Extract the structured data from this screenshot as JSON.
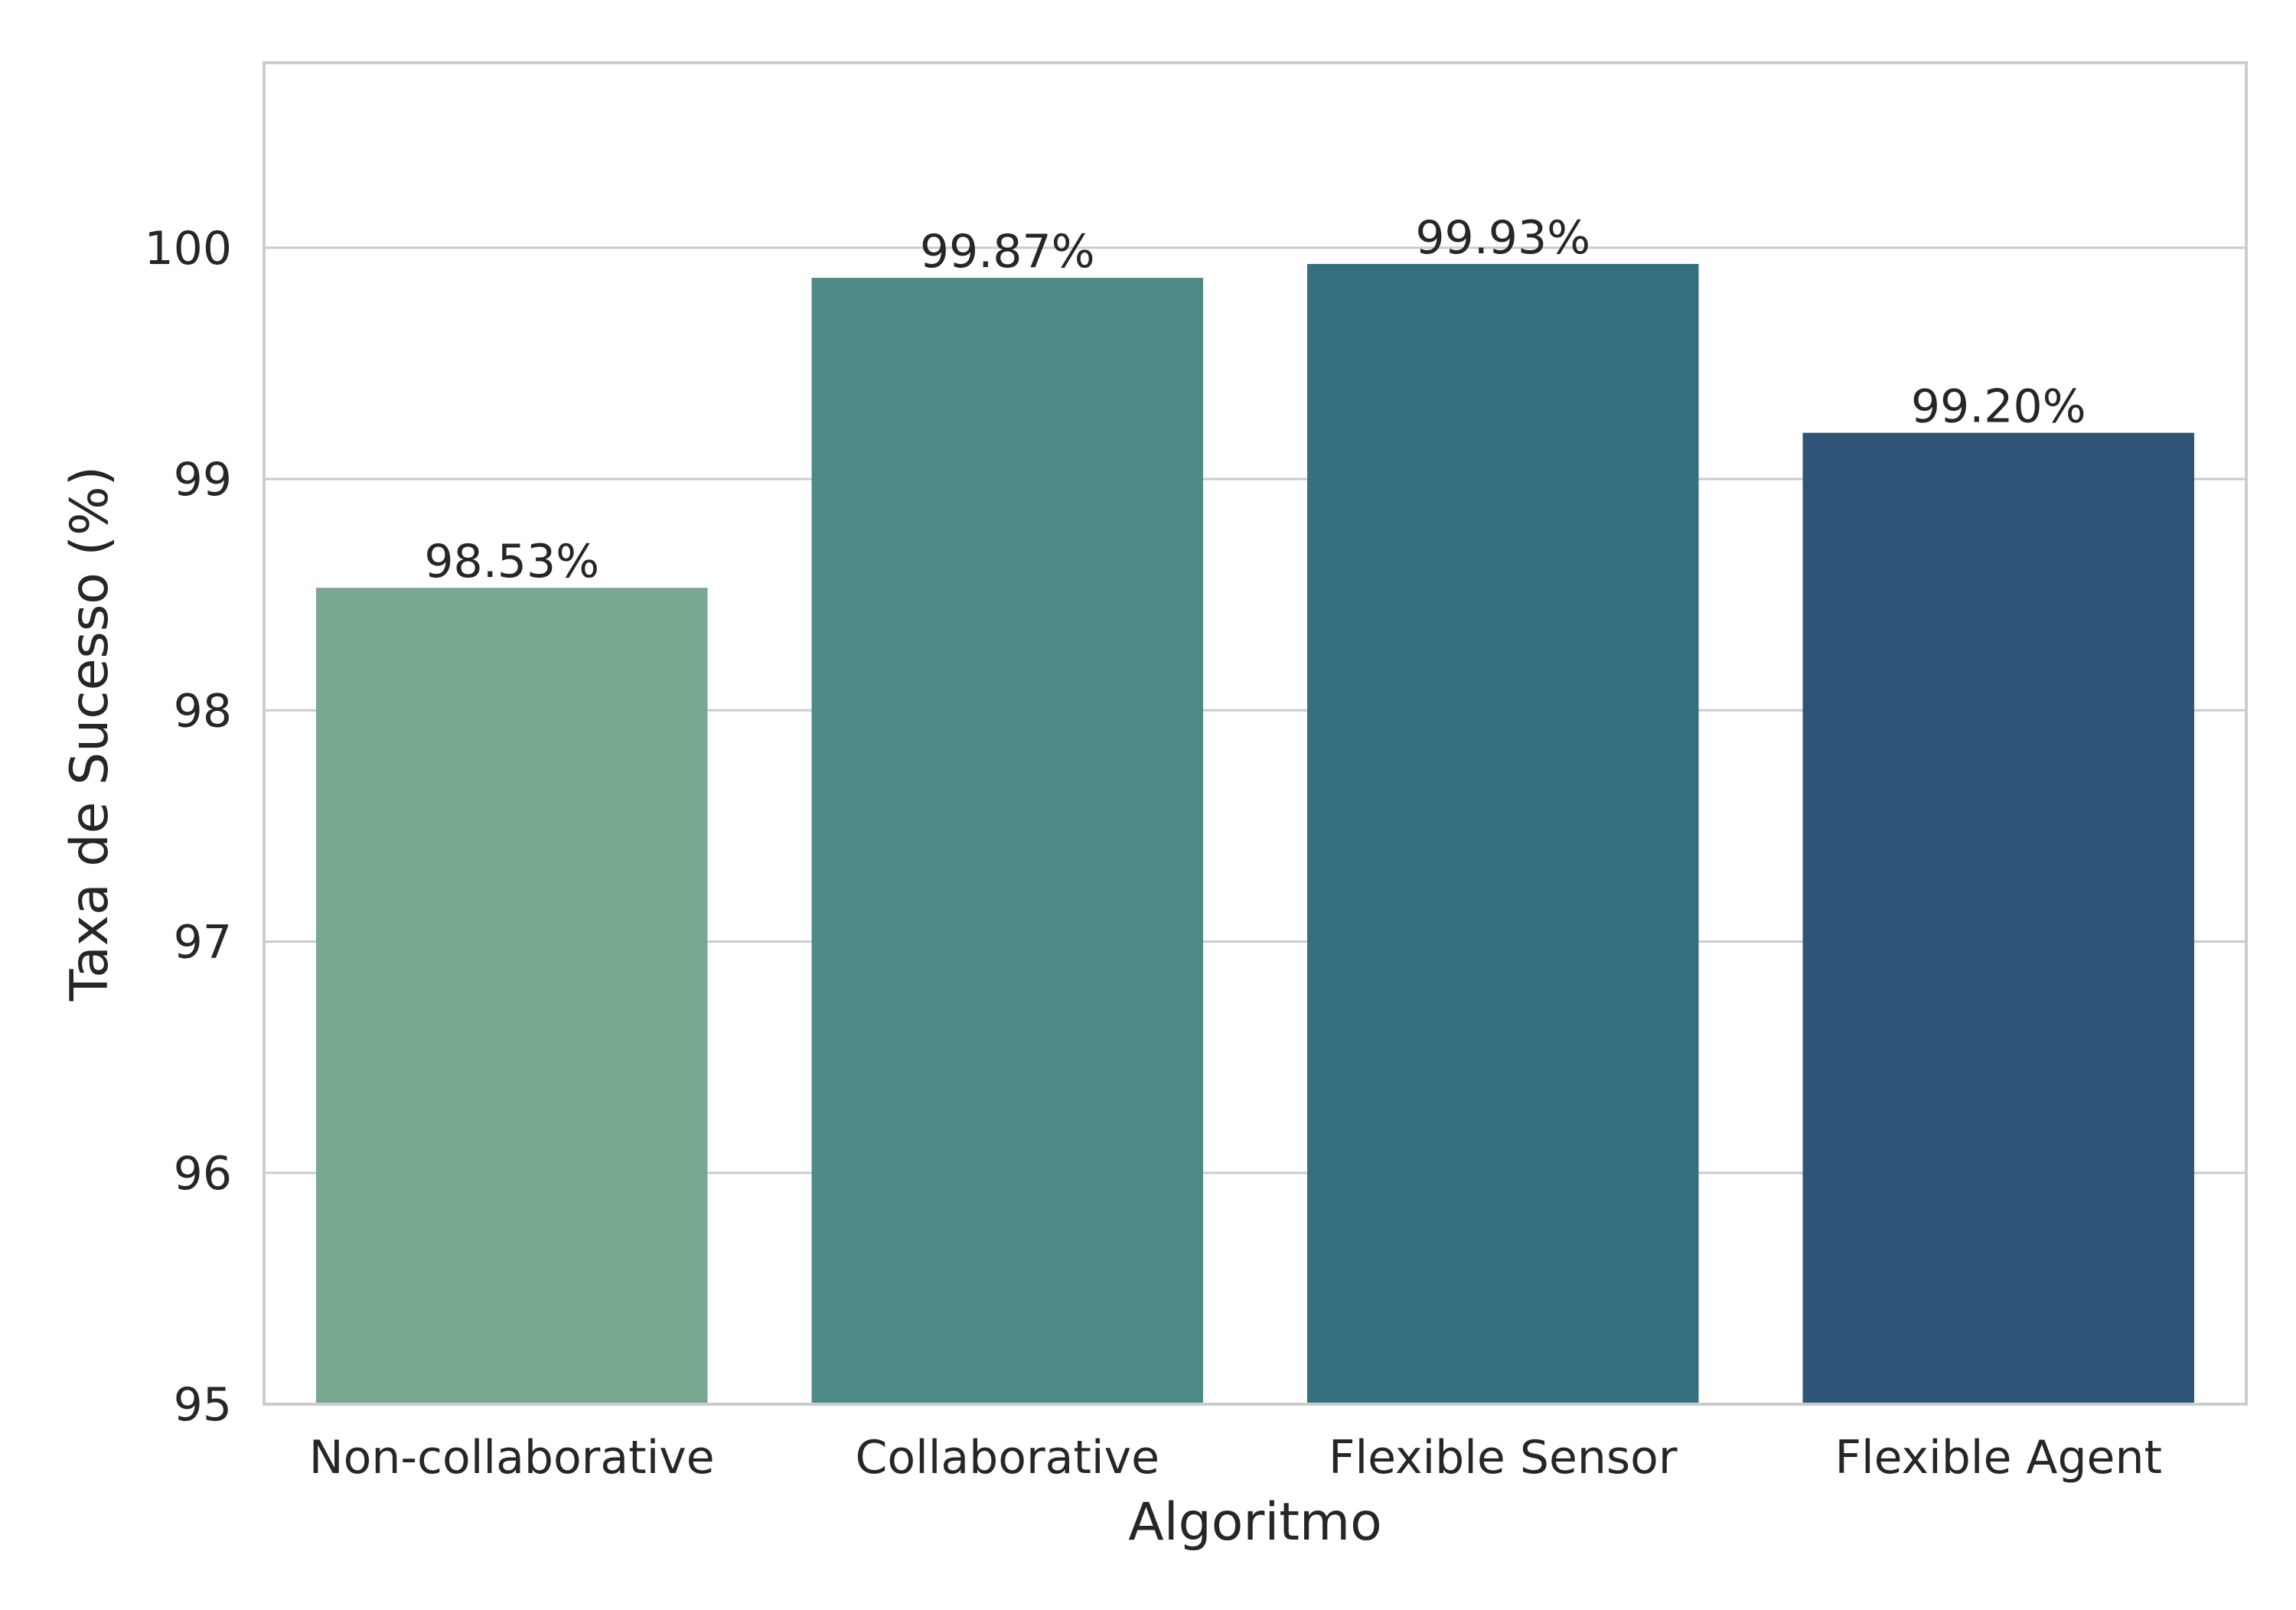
{
  "chart_data": {
    "type": "bar",
    "title": "",
    "xlabel": "Algoritmo",
    "ylabel": "Taxa de Sucesso (%)",
    "categories": [
      "Non-collaborative",
      "Collaborative",
      "Flexible Sensor",
      "Flexible Agent"
    ],
    "values": [
      98.53,
      99.87,
      99.93,
      99.2
    ],
    "value_labels": [
      "98.53%",
      "99.87%",
      "99.93%",
      "99.20%"
    ],
    "colors": [
      "#78a890",
      "#4e8a85",
      "#35707f",
      "#2e5477"
    ],
    "ylim": [
      95,
      100.8
    ],
    "yticks": [
      95,
      96,
      97,
      98,
      99,
      100
    ],
    "ytick_labels": [
      "95",
      "96",
      "97",
      "98",
      "99",
      "100"
    ],
    "grid": "y",
    "legend": "none"
  }
}
